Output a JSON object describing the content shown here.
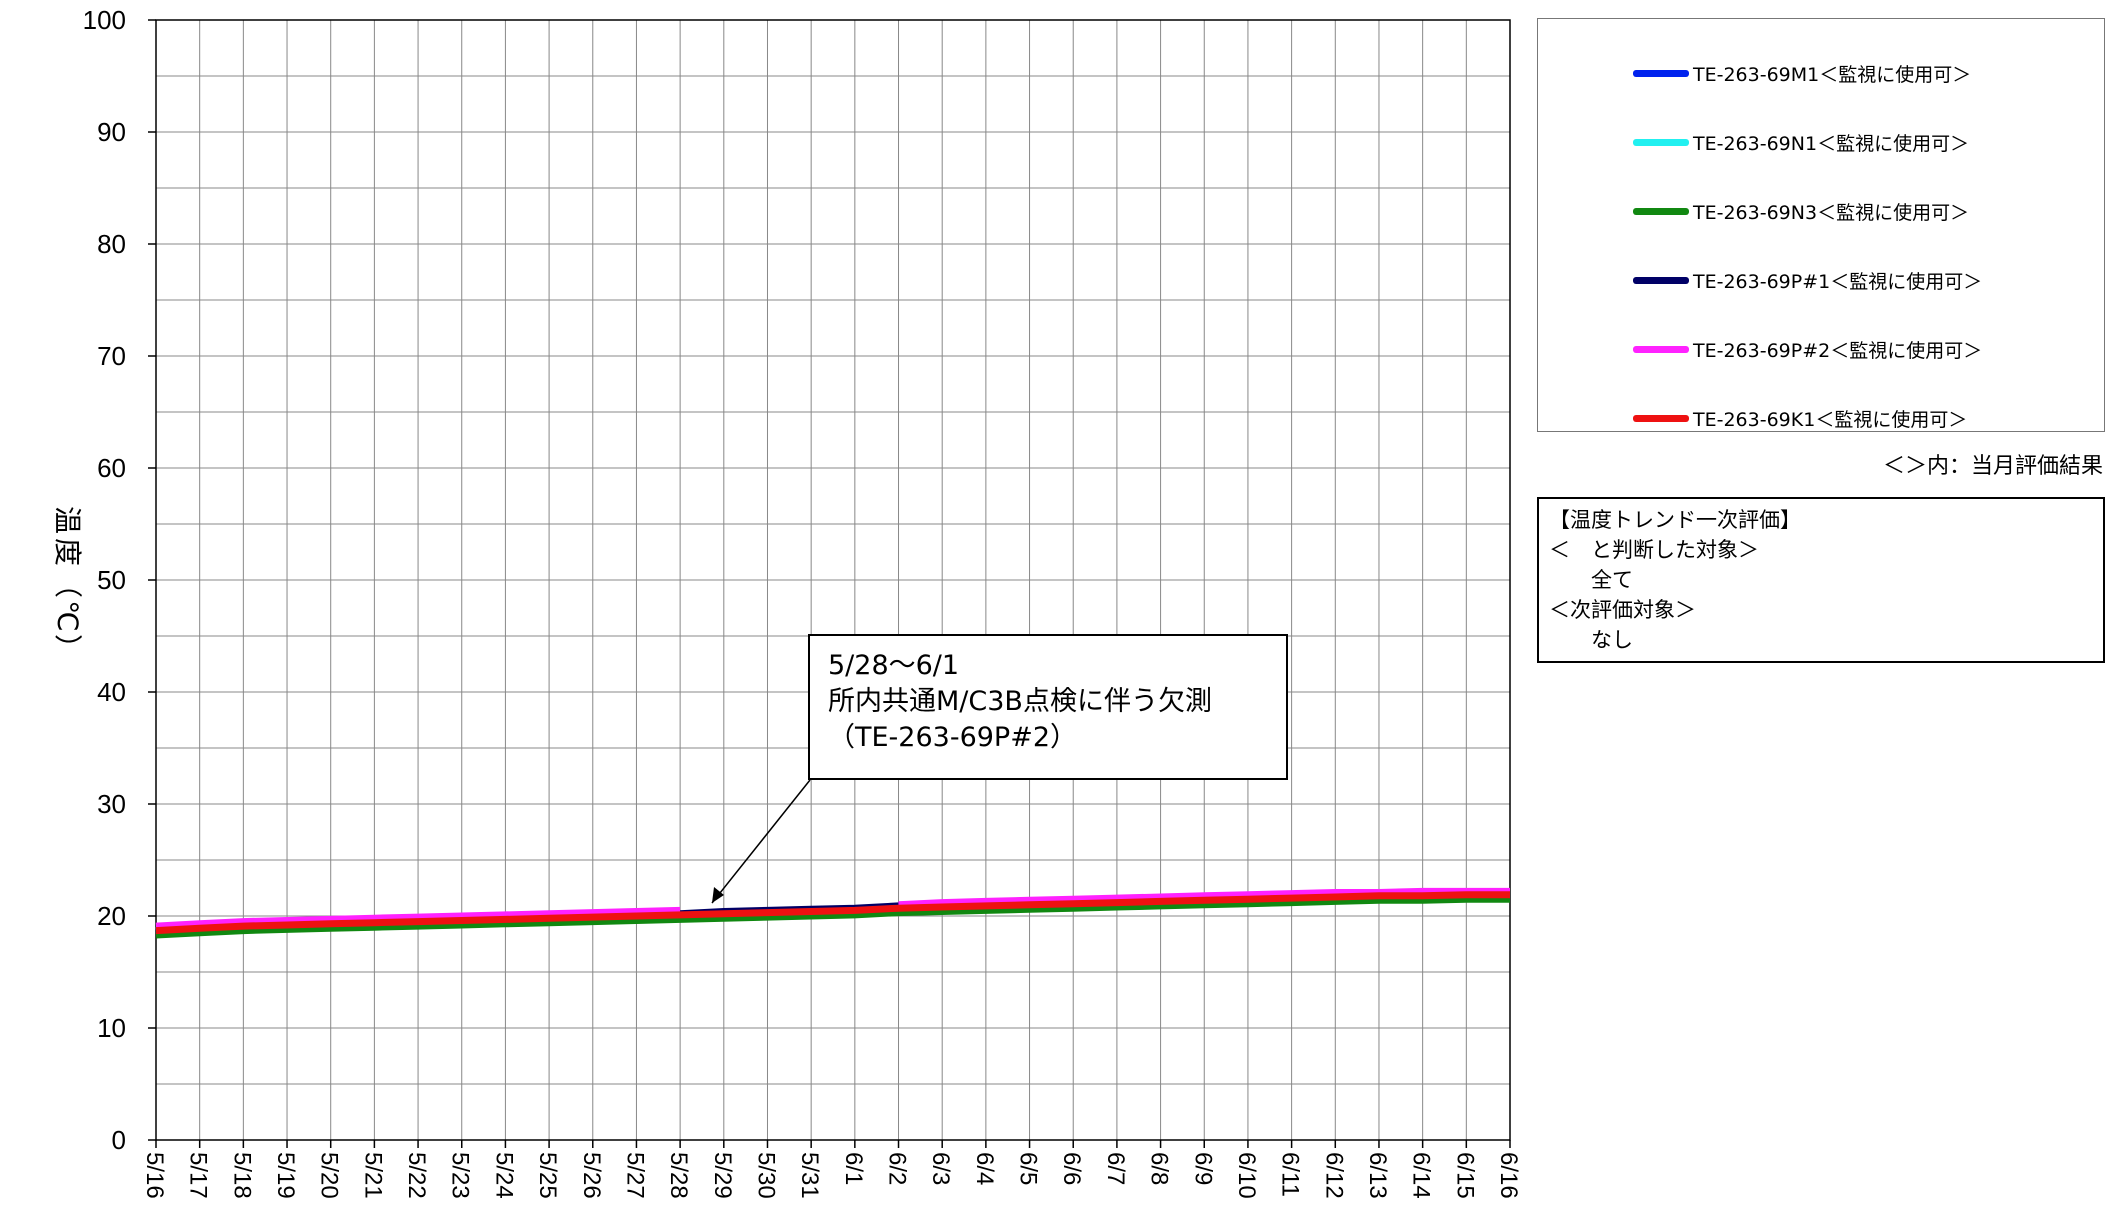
{
  "chart_data": {
    "type": "line",
    "title": "",
    "ylabel": "温度（℃）",
    "ylabel_chars": [
      "温",
      "度",
      "（",
      "℃",
      "）"
    ],
    "xlabel": "",
    "ylim": [
      0,
      100
    ],
    "yticks": [
      0,
      10,
      20,
      30,
      40,
      50,
      60,
      70,
      80,
      90,
      100
    ],
    "grid": true,
    "legend_position": "right",
    "x": [
      "5/16",
      "5/17",
      "5/18",
      "5/19",
      "5/20",
      "5/21",
      "5/22",
      "5/23",
      "5/24",
      "5/25",
      "5/26",
      "5/27",
      "5/28",
      "5/29",
      "5/30",
      "5/31",
      "6/1",
      "6/2",
      "6/3",
      "6/4",
      "6/5",
      "6/6",
      "6/7",
      "6/8",
      "6/9",
      "6/10",
      "6/11",
      "6/12",
      "6/13",
      "6/14",
      "6/15",
      "6/16"
    ],
    "series": [
      {
        "name": "TE-263-69M1＜監視に使用可＞",
        "color": "#0022ee",
        "values": [
          18.6,
          18.8,
          19.0,
          19.1,
          19.2,
          19.3,
          19.4,
          19.5,
          19.6,
          19.7,
          19.8,
          19.9,
          20.0,
          20.1,
          20.2,
          20.3,
          20.4,
          20.6,
          20.7,
          20.8,
          20.9,
          21.0,
          21.1,
          21.2,
          21.3,
          21.4,
          21.5,
          21.6,
          21.7,
          21.7,
          21.8,
          21.8
        ]
      },
      {
        "name": "TE-263-69N1＜監視に使用可＞",
        "color": "#22f0f0",
        "values": [
          18.7,
          18.9,
          19.1,
          19.2,
          19.3,
          19.4,
          19.5,
          19.6,
          19.7,
          19.8,
          19.9,
          20.0,
          20.1,
          20.2,
          20.3,
          20.4,
          20.5,
          20.7,
          20.8,
          20.9,
          21.0,
          21.1,
          21.2,
          21.3,
          21.4,
          21.5,
          21.6,
          21.7,
          21.8,
          21.8,
          21.9,
          21.9
        ]
      },
      {
        "name": "TE-263-69N3＜監視に使用可＞",
        "color": "#118811",
        "values": [
          18.3,
          18.5,
          18.7,
          18.8,
          18.9,
          19.0,
          19.1,
          19.2,
          19.3,
          19.4,
          19.5,
          19.6,
          19.7,
          19.8,
          19.9,
          20.0,
          20.1,
          20.3,
          20.4,
          20.5,
          20.6,
          20.7,
          20.8,
          20.9,
          21.0,
          21.1,
          21.2,
          21.3,
          21.4,
          21.4,
          21.5,
          21.5
        ]
      },
      {
        "name": "TE-263-69P#1＜監視に使用可＞",
        "color": "#000066",
        "values": [
          18.8,
          19.0,
          19.2,
          19.3,
          19.4,
          19.5,
          19.6,
          19.7,
          19.8,
          19.9,
          20.0,
          20.1,
          20.2,
          20.4,
          20.5,
          20.6,
          20.7,
          20.9,
          21.0,
          21.1,
          21.2,
          21.3,
          21.4,
          21.5,
          21.6,
          21.7,
          21.8,
          21.9,
          22.0,
          22.0,
          22.1,
          22.1
        ]
      },
      {
        "name": "TE-263-69P#2＜監視に使用可＞",
        "color": "#ff22ff",
        "values": [
          19.1,
          19.3,
          19.5,
          19.6,
          19.7,
          19.8,
          19.9,
          20.0,
          20.1,
          20.2,
          20.3,
          20.4,
          20.5,
          null,
          null,
          null,
          null,
          21.0,
          21.2,
          21.3,
          21.4,
          21.5,
          21.6,
          21.7,
          21.8,
          21.9,
          22.0,
          22.1,
          22.1,
          22.2,
          22.2,
          22.2
        ]
      },
      {
        "name": "TE-263-69K1＜監視に使用可＞",
        "color": "#ee1111",
        "values": [
          18.7,
          18.9,
          19.1,
          19.2,
          19.3,
          19.4,
          19.5,
          19.6,
          19.7,
          19.8,
          19.9,
          20.0,
          20.1,
          20.2,
          20.3,
          20.4,
          20.5,
          20.7,
          20.8,
          20.9,
          21.0,
          21.1,
          21.2,
          21.3,
          21.4,
          21.5,
          21.6,
          21.7,
          21.8,
          21.8,
          21.9,
          21.9
        ]
      }
    ]
  },
  "legend_note": "＜＞内：当月評価結果",
  "evaluation": {
    "lines": [
      "【温度トレンド一次評価】",
      "＜　と判断した対象＞",
      "　　全て",
      "＜次評価対象＞",
      "　　なし"
    ]
  },
  "annotation": {
    "lines": [
      "5/28～6/1",
      "所内共通M/C3B点検に伴う欠測",
      "（TE-263-69P#2）"
    ]
  }
}
